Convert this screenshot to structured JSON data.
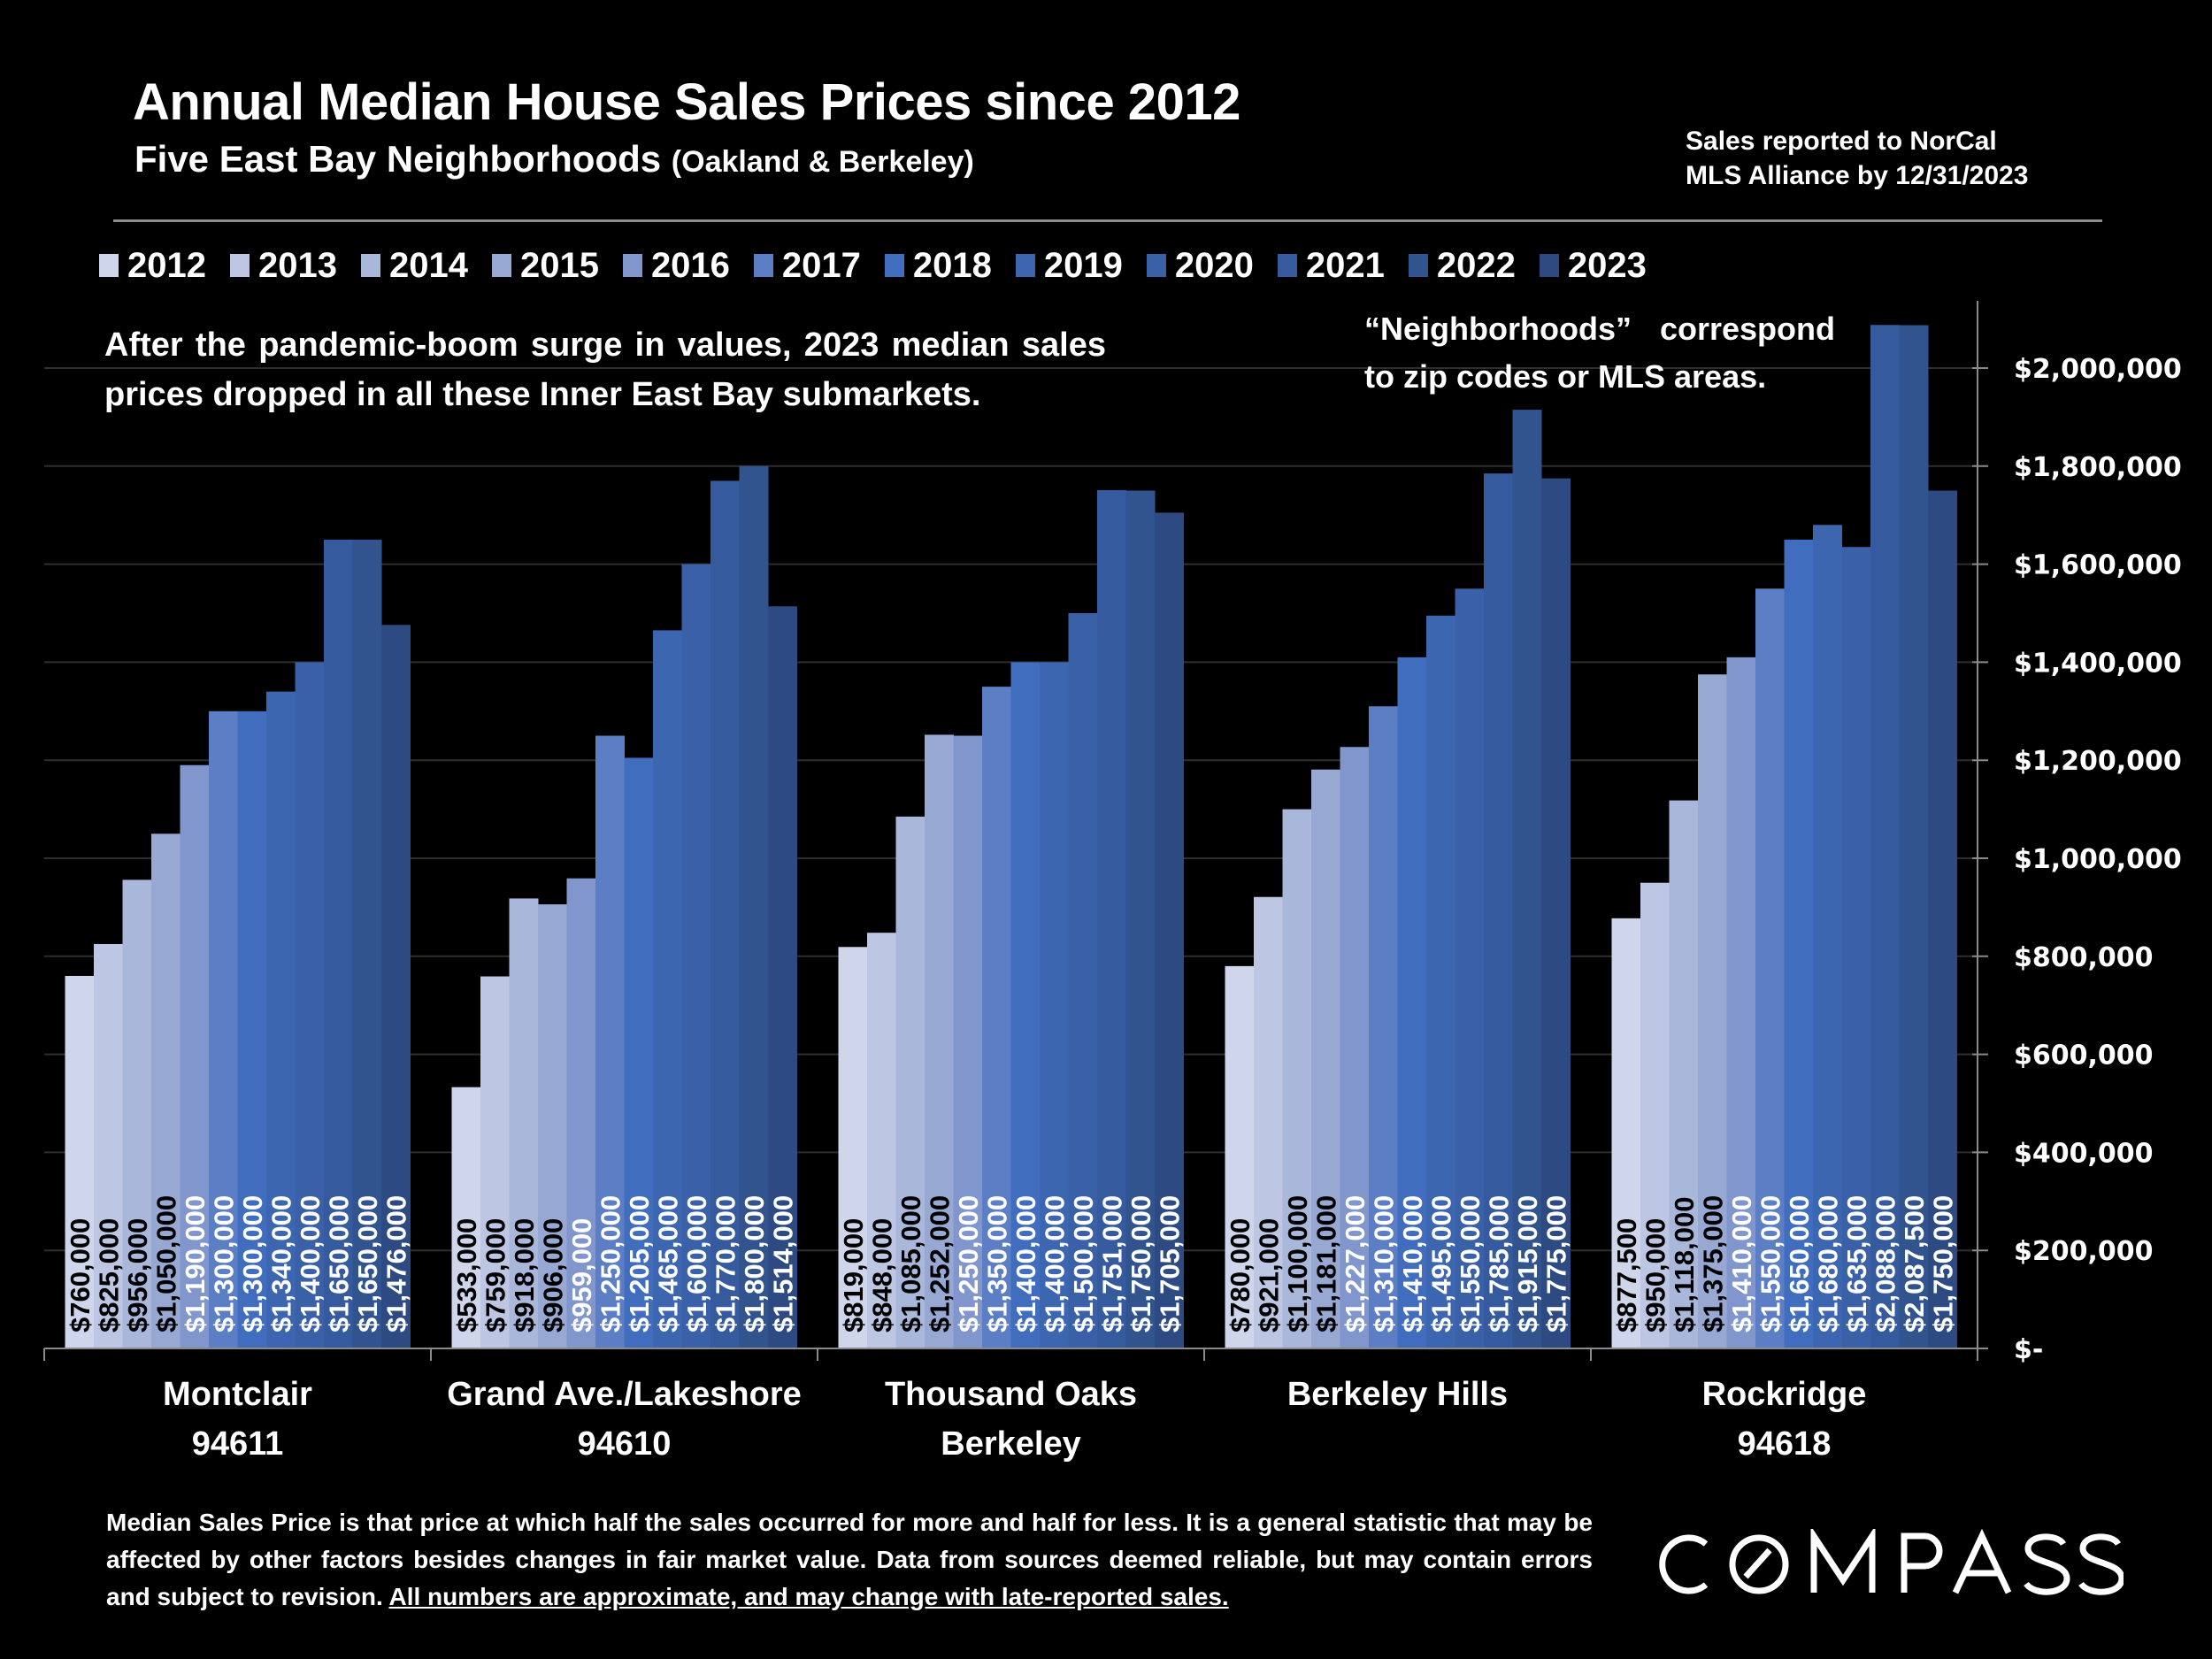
{
  "header": {
    "title": "Annual Median House Sales Prices since 2012",
    "subtitle_main": "Five East Bay Neighborhoods",
    "subtitle_paren": "(Oakland & Berkeley)",
    "source_note_line1": "Sales reported to NorCal",
    "source_note_line2": "MLS Alliance by 12/31/2023"
  },
  "annotations": {
    "left": "After the pandemic-boom surge in values, 2023 median sales prices dropped in all these Inner East Bay submarkets.",
    "right": "“Neighborhoods” correspond to zip codes or MLS areas."
  },
  "footer": {
    "text": "Median Sales Price is that price at which half the sales occurred for more and half for less. It is a general statistic that may be affected by other factors besides changes in fair market value. Data from sources deemed reliable, but may contain errors and subject to revision. ",
    "underlined": "All numbers are approximate, and may change with late-reported sales.",
    "logo": "COMPASS"
  },
  "chart_data": {
    "type": "bar",
    "title": "Annual Median House Sales Prices since 2012",
    "subtitle": "Five East Bay Neighborhoods (Oakland & Berkeley)",
    "xlabel": "",
    "ylabel": "",
    "ylim": [
      0,
      2000000
    ],
    "y_axis_position": "right",
    "y_ticks": [
      0,
      200000,
      400000,
      600000,
      800000,
      1000000,
      1200000,
      1400000,
      1600000,
      1800000,
      2000000
    ],
    "y_tick_labels": [
      "$-",
      "$200,000",
      "$400,000",
      "$600,000",
      "$800,000",
      "$1,000,000",
      "$1,200,000",
      "$1,400,000",
      "$1,600,000",
      "$1,800,000",
      "$2,000,000"
    ],
    "grid": true,
    "legend_position": "top",
    "categories": [
      {
        "line1": "Montclair",
        "line2": "94611"
      },
      {
        "line1": "Grand Ave./Lakeshore",
        "line2": "94610"
      },
      {
        "line1": "Thousand Oaks",
        "line2": "Berkeley"
      },
      {
        "line1": "Berkeley Hills",
        "line2": ""
      },
      {
        "line1": "Rockridge",
        "line2": "94618"
      }
    ],
    "series": [
      {
        "name": "2012",
        "color": "#CFD5EA",
        "values": [
          760000,
          533000,
          819000,
          780000,
          877500
        ]
      },
      {
        "name": "2013",
        "color": "#BDC6E3",
        "values": [
          825000,
          759000,
          848000,
          921000,
          950000
        ]
      },
      {
        "name": "2014",
        "color": "#A9B7DB",
        "values": [
          956000,
          918000,
          1085000,
          1100000,
          1118000
        ]
      },
      {
        "name": "2015",
        "color": "#97A8D3",
        "values": [
          1050000,
          906000,
          1252000,
          1181000,
          1375000
        ]
      },
      {
        "name": "2016",
        "color": "#8096CD",
        "values": [
          1190000,
          959000,
          1250000,
          1227000,
          1410000
        ]
      },
      {
        "name": "2017",
        "color": "#5B7EC5",
        "values": [
          1300000,
          1250000,
          1350000,
          1310000,
          1550000
        ]
      },
      {
        "name": "2018",
        "color": "#416DBE",
        "values": [
          1300000,
          1205000,
          1400000,
          1410000,
          1650000
        ]
      },
      {
        "name": "2019",
        "color": "#3D66B0",
        "values": [
          1340000,
          1465000,
          1400000,
          1495000,
          1680000
        ]
      },
      {
        "name": "2020",
        "color": "#3A61A8",
        "values": [
          1400000,
          1600000,
          1500000,
          1550000,
          1635000
        ]
      },
      {
        "name": "2021",
        "color": "#355A9D",
        "values": [
          1650000,
          1770000,
          1751000,
          1785000,
          2088000
        ]
      },
      {
        "name": "2022",
        "color": "#31548F",
        "values": [
          1650000,
          1800000,
          1750000,
          1915000,
          2087500
        ]
      },
      {
        "name": "2023",
        "color": "#2D4B82",
        "values": [
          1476000,
          1514000,
          1705000,
          1775000,
          1750000
        ]
      }
    ],
    "data_label_dark_series_count": 4,
    "data_label_dark_series_count_by_category": [
      4,
      4,
      4,
      4,
      4
    ]
  }
}
